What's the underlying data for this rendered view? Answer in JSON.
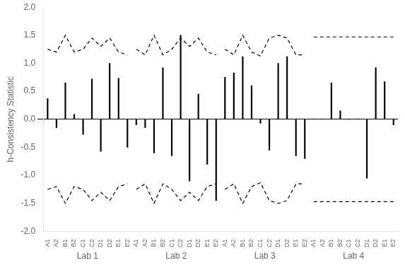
{
  "chart_data": {
    "type": "bar",
    "ylabel": "h-Consistency Statistic",
    "categories": [
      "A1",
      "A2",
      "B1",
      "B2",
      "C1",
      "C2",
      "D1",
      "D2",
      "E1",
      "E2"
    ],
    "series": [
      {
        "name": "Lab 1",
        "values": [
          0.37,
          -0.15,
          0.65,
          0.09,
          -0.27,
          0.72,
          -0.57,
          1.0,
          0.73,
          -0.5
        ],
        "upper_bounds": [
          1.25,
          1.2,
          1.5,
          1.2,
          1.25,
          1.45,
          1.3,
          1.45,
          1.2,
          1.15
        ],
        "lower_bounds": [
          -1.25,
          -1.2,
          -1.5,
          -1.2,
          -1.25,
          -1.45,
          -1.3,
          -1.45,
          -1.2,
          -1.15
        ]
      },
      {
        "name": "Lab 2",
        "values": [
          -0.1,
          -0.15,
          -0.6,
          0.92,
          -0.65,
          1.5,
          -1.1,
          0.45,
          -0.8,
          -1.45
        ],
        "upper_bounds": [
          1.25,
          1.15,
          1.5,
          1.15,
          1.25,
          1.45,
          1.3,
          1.45,
          1.2,
          1.15
        ],
        "lower_bounds": [
          -1.25,
          -1.15,
          -1.5,
          -1.15,
          -1.25,
          -1.45,
          -1.3,
          -1.45,
          -1.2,
          -1.15
        ]
      },
      {
        "name": "Lab 3",
        "values": [
          0.75,
          0.83,
          1.12,
          0.6,
          -0.07,
          -0.55,
          1.0,
          1.12,
          -0.65,
          -0.7
        ],
        "upper_bounds": [
          1.25,
          1.15,
          1.5,
          1.2,
          1.13,
          1.45,
          1.5,
          1.45,
          1.15,
          1.15
        ],
        "lower_bounds": [
          -1.25,
          -1.15,
          -1.5,
          -1.2,
          -1.13,
          -1.45,
          -1.5,
          -1.45,
          -1.15,
          -1.15
        ]
      },
      {
        "name": "Lab 4",
        "values": [
          0.0,
          0.0,
          0.65,
          0.15,
          0.0,
          0.0,
          -1.05,
          0.92,
          0.67,
          -0.1
        ],
        "upper_bounds": [
          1.47,
          1.47,
          1.47,
          1.47,
          1.47,
          1.47,
          1.47,
          1.47,
          1.47,
          1.47
        ],
        "lower_bounds": [
          -1.47,
          -1.47,
          -1.47,
          -1.47,
          -1.47,
          -1.47,
          -1.47,
          -1.47,
          -1.47,
          -1.47
        ]
      }
    ],
    "color": "#000000",
    "line_style": "dashed",
    "ylim": [
      -2.0,
      2.0
    ],
    "yticks": [
      {
        "value": -2.0,
        "label": "-2.0"
      },
      -1.5,
      {
        "value": -1.0,
        "label": "-1.0"
      },
      -0.5,
      {
        "value": 0.0,
        "label": "0.0"
      },
      0.5,
      {
        "value": 1.0,
        "label": "1.0"
      },
      1.5,
      {
        "value": 2.0,
        "label": "2.0"
      }
    ],
    "grid": false
  }
}
